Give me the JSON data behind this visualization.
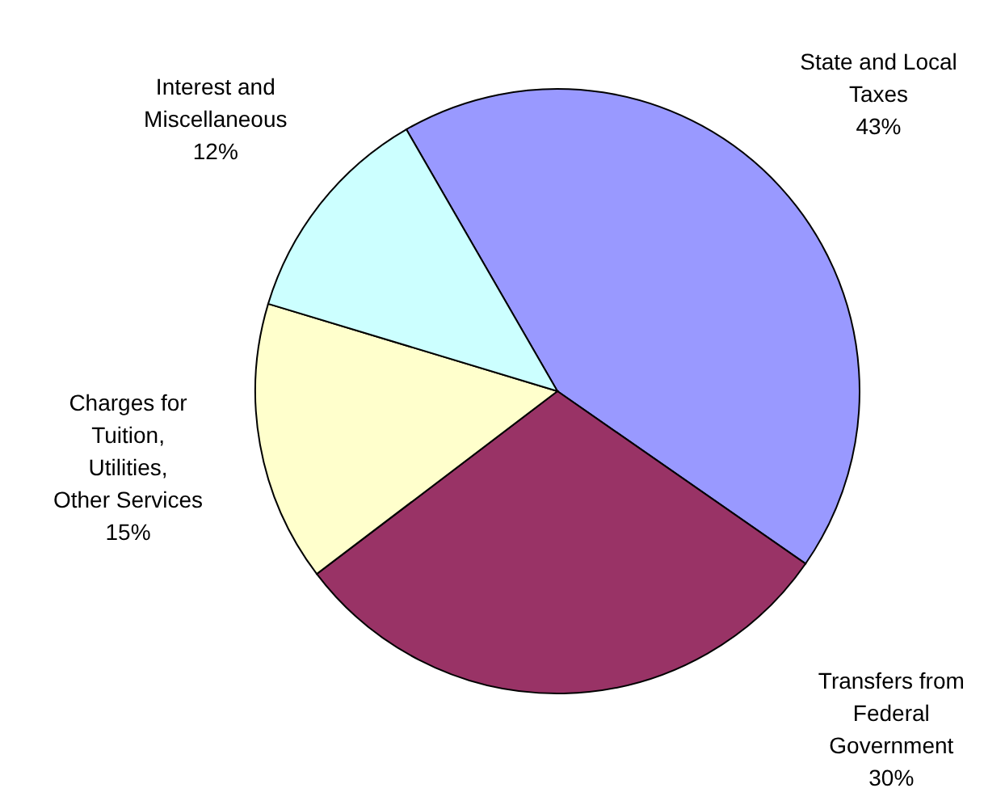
{
  "chart_data": {
    "type": "pie",
    "categories": [
      "State and Local Taxes",
      "Transfers from Federal Government",
      "Charges for Tuition, Utilities, Other Services",
      "Interest and Miscellaneous"
    ],
    "values": [
      43,
      30,
      15,
      12
    ],
    "colors": [
      "#9999ff",
      "#993366",
      "#ffffcc",
      "#ccffff"
    ],
    "value_labels": [
      "43%",
      "30%",
      "15%",
      "12%"
    ]
  }
}
